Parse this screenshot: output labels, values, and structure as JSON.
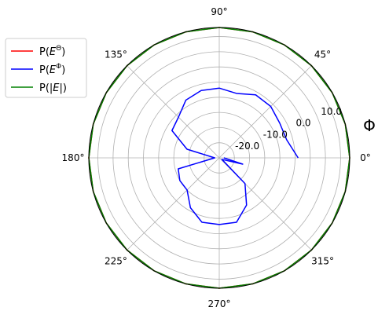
{
  "chart_data": {
    "type": "line",
    "projection": "polar",
    "theta_unit": "degrees",
    "angle_labels": [
      "0°",
      "45°",
      "90°",
      "135°",
      "180°",
      "225°",
      "270°",
      "315°"
    ],
    "radial_labels": [
      "-20.0",
      "-10.0",
      "0.0",
      "10.0"
    ],
    "rlim": [
      -30,
      13
    ],
    "radial_label_angle_deg": 22.5,
    "grid": true,
    "side_label": "Φ",
    "legend_position": "upper-left outside",
    "legend": [
      "P(E^Θ)",
      "P(E^Φ)",
      "P(|E|)"
    ],
    "colors": {
      "theta": "#ff0000",
      "phi": "#0000ff",
      "total": "#008000"
    },
    "series": [
      {
        "name": "P(E^Θ)",
        "color": "#ff0000",
        "theta": [
          0,
          15,
          30,
          45,
          60,
          75,
          90,
          105,
          120,
          135,
          150,
          165,
          180,
          195,
          210,
          225,
          240,
          255,
          270,
          285,
          300,
          315,
          330,
          345,
          360
        ],
        "r": [
          13,
          13,
          13,
          13,
          13,
          13,
          13,
          13,
          13,
          13,
          13,
          13,
          13,
          13,
          13,
          13,
          13,
          13,
          13,
          13,
          13,
          13,
          13,
          13,
          13
        ]
      },
      {
        "name": "P(E^Φ)",
        "color": "#0000ff",
        "theta": [
          0,
          15,
          30,
          45,
          60,
          75,
          90,
          105,
          120,
          135,
          150,
          165,
          180,
          195,
          210,
          225,
          240,
          255,
          270,
          285,
          300,
          315,
          330,
          345,
          360
        ],
        "r": [
          -4,
          -7,
          -7,
          -6,
          -6,
          -8,
          -7,
          -7,
          -8,
          -11,
          -12,
          -19,
          -28.5,
          -16,
          -15,
          -15,
          -11,
          -8,
          -8,
          -8,
          -12,
          -18,
          -29,
          -22,
          -28.5
        ]
      },
      {
        "name": "P(|E|)",
        "color": "#008000",
        "theta": [
          0,
          15,
          30,
          45,
          60,
          75,
          90,
          105,
          120,
          135,
          150,
          165,
          180,
          195,
          210,
          225,
          240,
          255,
          270,
          285,
          300,
          315,
          330,
          345,
          360
        ],
        "r": [
          13,
          13,
          13,
          13,
          13,
          13,
          13,
          13,
          13,
          13,
          13,
          13,
          13,
          13,
          13,
          13,
          13,
          13,
          13,
          13,
          13,
          13,
          13,
          13,
          13
        ]
      }
    ]
  }
}
